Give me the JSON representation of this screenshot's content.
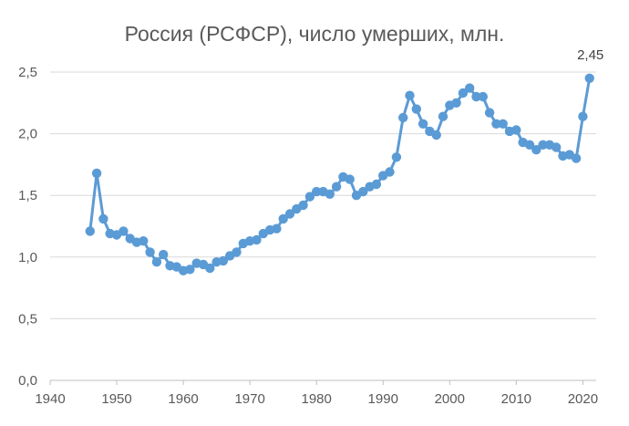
{
  "chart_data": {
    "type": "line",
    "title": "Россия (РСФСР), число умерших, млн.",
    "xlabel": "",
    "ylabel": "",
    "xlim": [
      1940,
      2022
    ],
    "ylim": [
      0,
      2.5
    ],
    "x_ticks": [
      "1940",
      "1950",
      "1960",
      "1970",
      "1980",
      "1990",
      "2000",
      "2010",
      "2020"
    ],
    "y_ticks": [
      "0,0",
      "0,5",
      "1,0",
      "1,5",
      "2,0",
      "2,5"
    ],
    "grid": true,
    "legend": "none",
    "color": "#5b9bd5",
    "series": [
      {
        "x": [
          1946,
          1947,
          1948,
          1949,
          1950,
          1951,
          1952,
          1953,
          1954,
          1955,
          1956,
          1957,
          1958,
          1959,
          1960,
          1961,
          1962,
          1963,
          1964,
          1965,
          1966,
          1967,
          1968,
          1969,
          1970,
          1971,
          1972,
          1973,
          1974,
          1975,
          1976,
          1977,
          1978,
          1979,
          1980,
          1981,
          1982,
          1983,
          1984,
          1985,
          1986,
          1987,
          1988,
          1989,
          1990,
          1991,
          1992,
          1993,
          1994,
          1995,
          1996,
          1997,
          1998,
          1999,
          2000,
          2001,
          2002,
          2003,
          2004,
          2005,
          2006,
          2007,
          2008,
          2009,
          2010,
          2011,
          2012,
          2013,
          2014,
          2015,
          2016,
          2017,
          2018,
          2019,
          2020,
          2021
        ],
        "y": [
          1.21,
          1.68,
          1.31,
          1.19,
          1.18,
          1.21,
          1.15,
          1.12,
          1.13,
          1.04,
          0.96,
          1.02,
          0.93,
          0.92,
          0.89,
          0.9,
          0.95,
          0.94,
          0.91,
          0.96,
          0.97,
          1.01,
          1.04,
          1.11,
          1.13,
          1.14,
          1.19,
          1.22,
          1.23,
          1.31,
          1.35,
          1.39,
          1.42,
          1.49,
          1.53,
          1.53,
          1.51,
          1.57,
          1.65,
          1.63,
          1.5,
          1.53,
          1.57,
          1.59,
          1.66,
          1.69,
          1.81,
          2.13,
          2.31,
          2.2,
          2.08,
          2.02,
          1.99,
          2.14,
          2.23,
          2.25,
          2.33,
          2.37,
          2.3,
          2.3,
          2.17,
          2.08,
          2.08,
          2.02,
          2.03,
          1.93,
          1.91,
          1.87,
          1.91,
          1.91,
          1.89,
          1.82,
          1.83,
          1.8,
          2.14,
          2.45
        ]
      }
    ],
    "annotations": [
      {
        "x": 2021,
        "y": 2.45,
        "text": "2,45"
      }
    ]
  }
}
